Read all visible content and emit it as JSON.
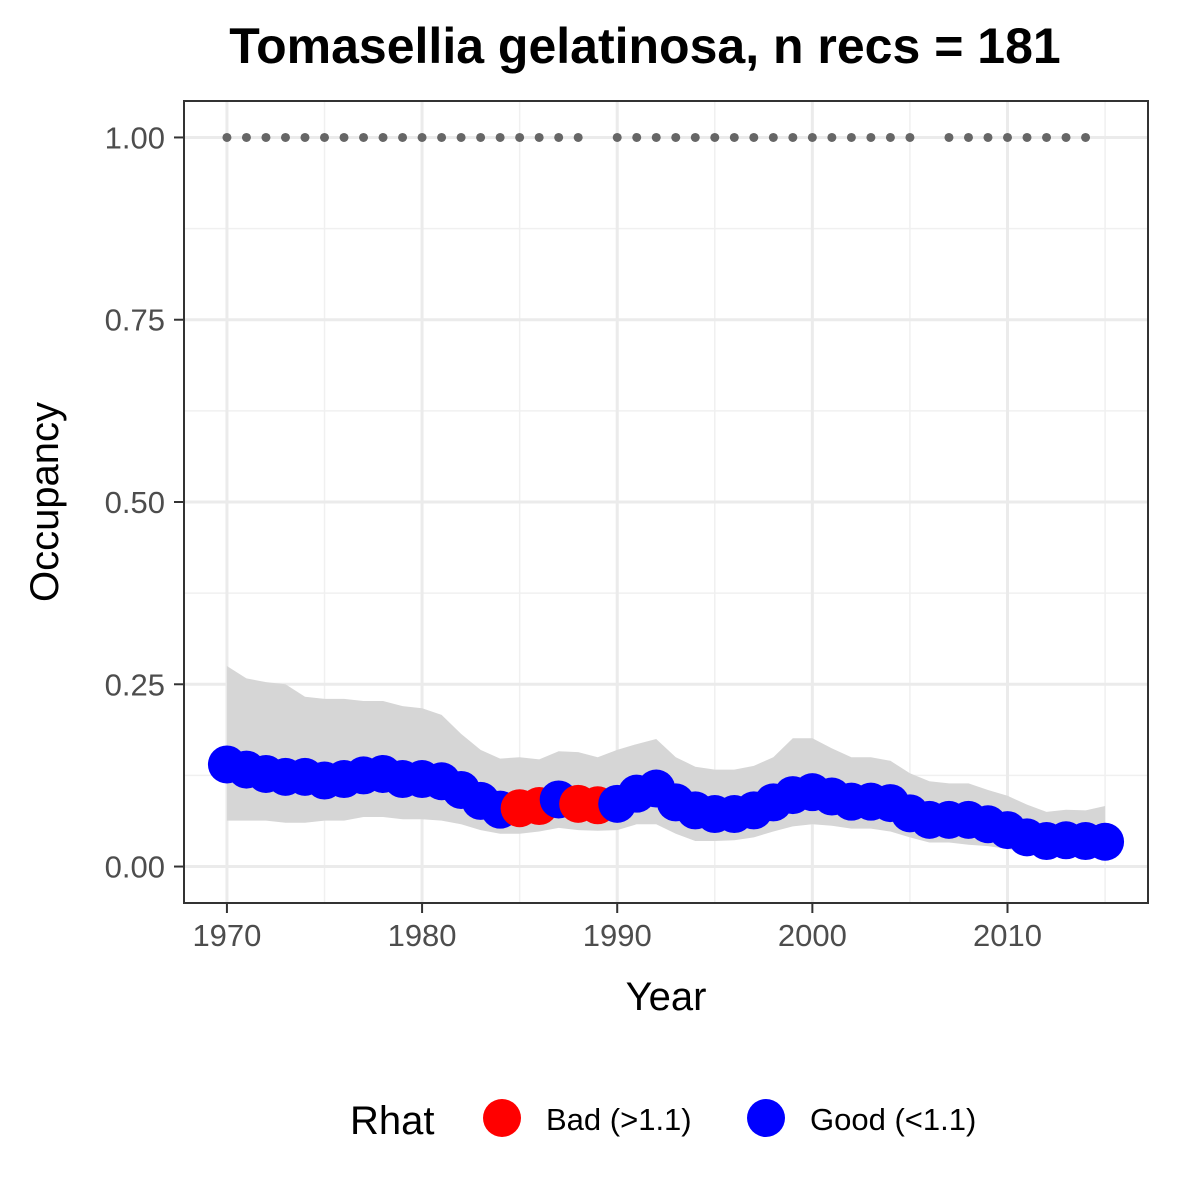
{
  "chart_data": {
    "type": "line",
    "title": "Tomasellia gelatinosa, n recs = 181",
    "xlabel": "Year",
    "ylabel": "Occupancy",
    "xlim": [
      1967.8,
      2017.2
    ],
    "ylim": [
      -0.05,
      1.05
    ],
    "x_ticks": [
      1970,
      1980,
      1990,
      2000,
      2010
    ],
    "y_ticks": [
      0.0,
      0.25,
      0.5,
      0.75,
      1.0
    ],
    "x_tick_labels": [
      "1970",
      "1980",
      "1990",
      "2000",
      "2010"
    ],
    "y_tick_labels": [
      "0.00",
      "0.25",
      "0.50",
      "0.75",
      "1.00"
    ],
    "grid": true,
    "legend": {
      "title": "Rhat",
      "position": "bottom",
      "entries": [
        {
          "label": "Bad (>1.1)",
          "color": "#ff0000"
        },
        {
          "label": "Good (<1.1)",
          "color": "#0000ff"
        }
      ]
    },
    "colors": {
      "bad": "#ff0000",
      "good": "#0000ff",
      "ribbon": "#d6d6d6",
      "record_dots": "#666666"
    },
    "series": {
      "x": [
        1970,
        1971,
        1972,
        1973,
        1974,
        1975,
        1976,
        1977,
        1978,
        1979,
        1980,
        1981,
        1982,
        1983,
        1984,
        1985,
        1986,
        1987,
        1988,
        1989,
        1990,
        1991,
        1992,
        1993,
        1994,
        1995,
        1996,
        1997,
        1998,
        1999,
        2000,
        2001,
        2002,
        2003,
        2004,
        2005,
        2006,
        2007,
        2008,
        2009,
        2010,
        2011,
        2012,
        2013,
        2014,
        2015
      ],
      "occupancy": [
        0.14,
        0.133,
        0.127,
        0.123,
        0.123,
        0.118,
        0.12,
        0.125,
        0.127,
        0.12,
        0.12,
        0.117,
        0.105,
        0.09,
        0.078,
        0.08,
        0.083,
        0.092,
        0.086,
        0.084,
        0.086,
        0.1,
        0.107,
        0.088,
        0.077,
        0.072,
        0.072,
        0.077,
        0.088,
        0.098,
        0.102,
        0.096,
        0.089,
        0.089,
        0.087,
        0.073,
        0.064,
        0.064,
        0.064,
        0.058,
        0.05,
        0.04,
        0.035,
        0.036,
        0.035,
        0.034
      ],
      "lower": [
        0.063,
        0.063,
        0.063,
        0.06,
        0.06,
        0.063,
        0.063,
        0.068,
        0.068,
        0.065,
        0.065,
        0.063,
        0.058,
        0.05,
        0.045,
        0.045,
        0.048,
        0.053,
        0.05,
        0.049,
        0.05,
        0.058,
        0.058,
        0.045,
        0.035,
        0.035,
        0.036,
        0.04,
        0.048,
        0.055,
        0.058,
        0.056,
        0.052,
        0.052,
        0.048,
        0.04,
        0.033,
        0.033,
        0.03,
        0.028,
        0.024,
        0.02,
        0.018,
        0.018,
        0.017,
        0.016
      ],
      "upper": [
        0.275,
        0.258,
        0.253,
        0.25,
        0.233,
        0.23,
        0.23,
        0.227,
        0.227,
        0.22,
        0.217,
        0.208,
        0.182,
        0.16,
        0.148,
        0.15,
        0.147,
        0.158,
        0.157,
        0.15,
        0.16,
        0.168,
        0.175,
        0.15,
        0.137,
        0.133,
        0.133,
        0.138,
        0.15,
        0.176,
        0.176,
        0.162,
        0.15,
        0.15,
        0.145,
        0.128,
        0.117,
        0.114,
        0.114,
        0.105,
        0.097,
        0.085,
        0.075,
        0.078,
        0.077,
        0.083
      ],
      "rhat_status": [
        "good",
        "good",
        "good",
        "good",
        "good",
        "good",
        "good",
        "good",
        "good",
        "good",
        "good",
        "good",
        "good",
        "good",
        "good",
        "bad",
        "bad",
        "good",
        "bad",
        "bad",
        "good",
        "good",
        "good",
        "good",
        "good",
        "good",
        "good",
        "good",
        "good",
        "good",
        "good",
        "good",
        "good",
        "good",
        "good",
        "good",
        "good",
        "good",
        "good",
        "good",
        "good",
        "good",
        "good",
        "good",
        "good",
        "good"
      ]
    },
    "record_years": {
      "y": 1.0,
      "x": [
        1970,
        1971,
        1972,
        1973,
        1974,
        1975,
        1976,
        1977,
        1978,
        1979,
        1980,
        1981,
        1982,
        1983,
        1984,
        1985,
        1986,
        1987,
        1988,
        1990,
        1991,
        1992,
        1993,
        1994,
        1995,
        1996,
        1997,
        1998,
        1999,
        2000,
        2001,
        2002,
        2003,
        2004,
        2005,
        2007,
        2008,
        2009,
        2010,
        2011,
        2012,
        2013,
        2014
      ]
    }
  }
}
